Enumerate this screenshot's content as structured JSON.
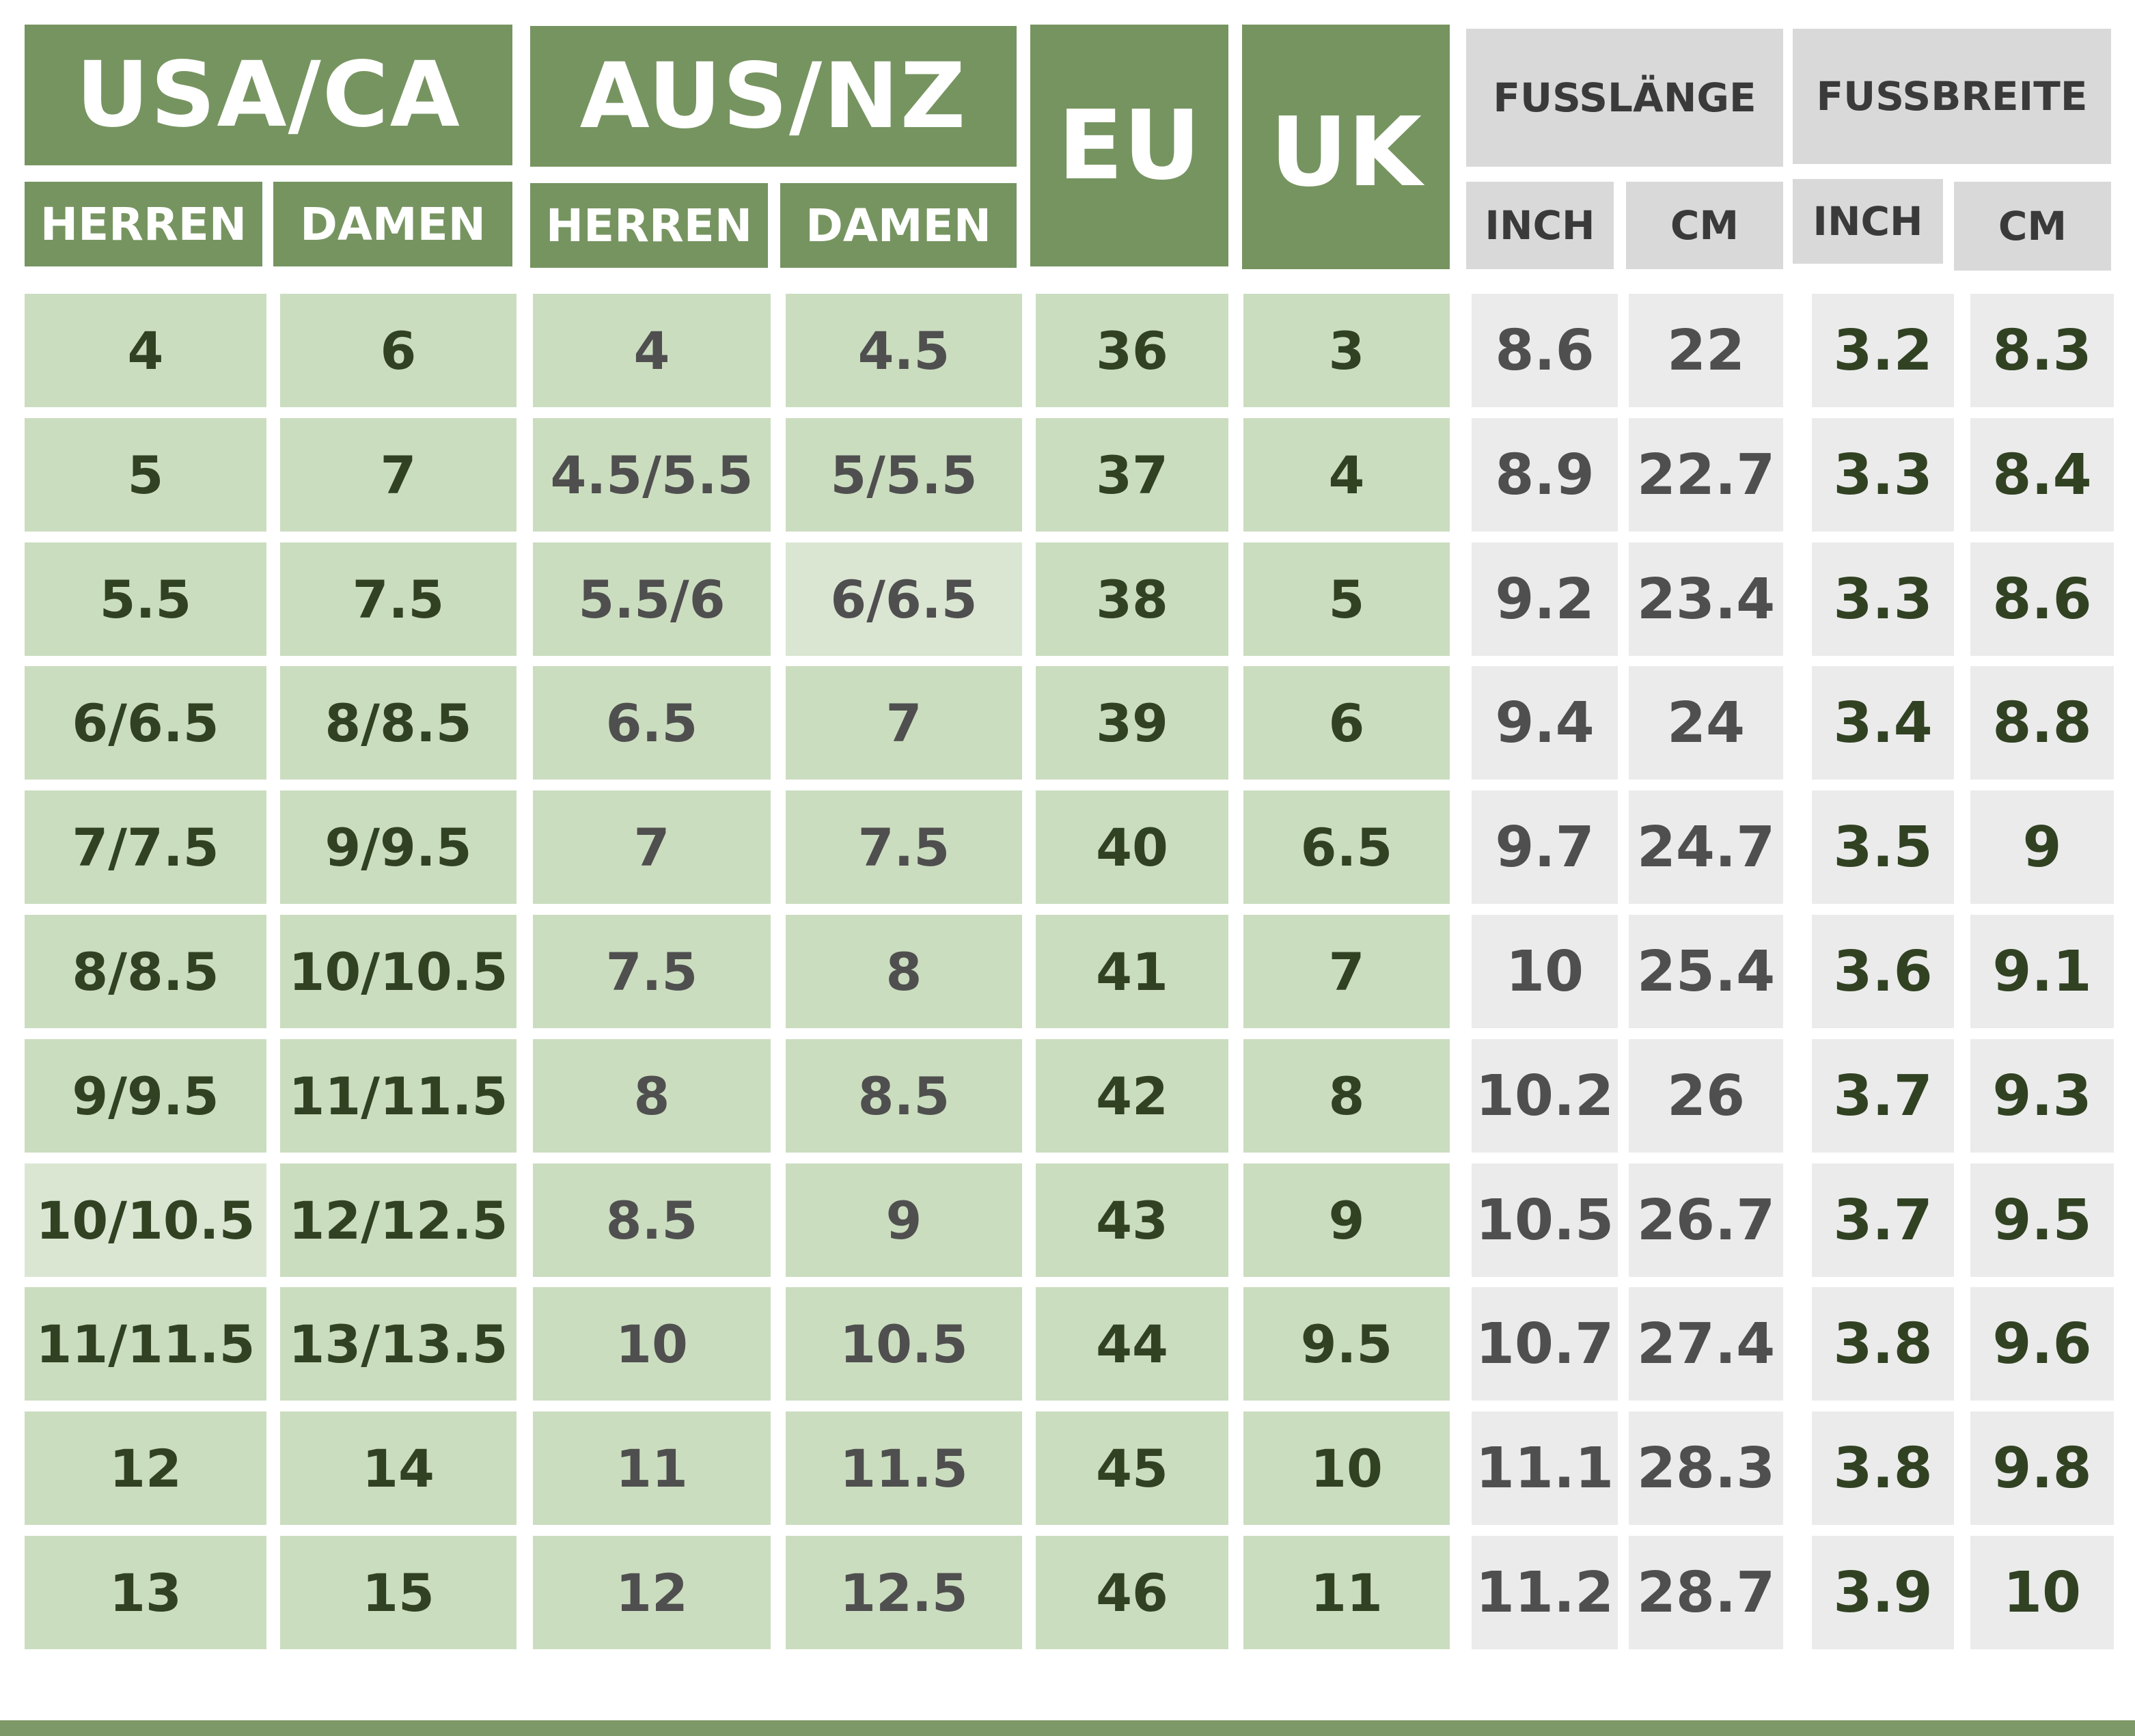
{
  "header": {
    "usa_ca": "USA/CA",
    "aus_nz": "AUS/NZ",
    "eu": "EU",
    "uk": "UK",
    "herren": "HERREN",
    "damen": "DAMEN",
    "fusslaenge": "FUSSLÄNGE",
    "fussbreite": "FUSSBREITE",
    "inch": "INCH",
    "cm": "CM"
  },
  "colors": {
    "header_green": "#769460",
    "cell_green": "#cbddbf",
    "header_gray": "#d9d9d9",
    "cell_gray": "#ebebeb",
    "text_dark_green": "#314223",
    "text_gray": "#4f4f4f"
  },
  "rows": [
    [
      "4",
      "6",
      "4",
      "4.5",
      "36",
      "3",
      "8.6",
      "22",
      "3.2",
      "8.3"
    ],
    [
      "5",
      "7",
      "4.5/5.5",
      "5/5.5",
      "37",
      "4",
      "8.9",
      "22.7",
      "3.3",
      "8.4"
    ],
    [
      "5.5",
      "7.5",
      "5.5/6",
      "6/6.5",
      "38",
      "5",
      "9.2",
      "23.4",
      "3.3",
      "8.6"
    ],
    [
      "6/6.5",
      "8/8.5",
      "6.5",
      "7",
      "39",
      "6",
      "9.4",
      "24",
      "3.4",
      "8.8"
    ],
    [
      "7/7.5",
      "9/9.5",
      "7",
      "7.5",
      "40",
      "6.5",
      "9.7",
      "24.7",
      "3.5",
      "9"
    ],
    [
      "8/8.5",
      "10/10.5",
      "7.5",
      "8",
      "41",
      "7",
      "10",
      "25.4",
      "3.6",
      "9.1"
    ],
    [
      "9/9.5",
      "11/11.5",
      "8",
      "8.5",
      "42",
      "8",
      "10.2",
      "26",
      "3.7",
      "9.3"
    ],
    [
      "10/10.5",
      "12/12.5",
      "8.5",
      "9",
      "43",
      "9",
      "10.5",
      "26.7",
      "3.7",
      "9.5"
    ],
    [
      "11/11.5",
      "13/13.5",
      "10",
      "10.5",
      "44",
      "9.5",
      "10.7",
      "27.4",
      "3.8",
      "9.6"
    ],
    [
      "12",
      "14",
      "11",
      "11.5",
      "45",
      "10",
      "11.1",
      "28.3",
      "3.8",
      "9.8"
    ],
    [
      "13",
      "15",
      "12",
      "12.5",
      "46",
      "11",
      "11.2",
      "28.7",
      "3.9",
      "10"
    ]
  ]
}
